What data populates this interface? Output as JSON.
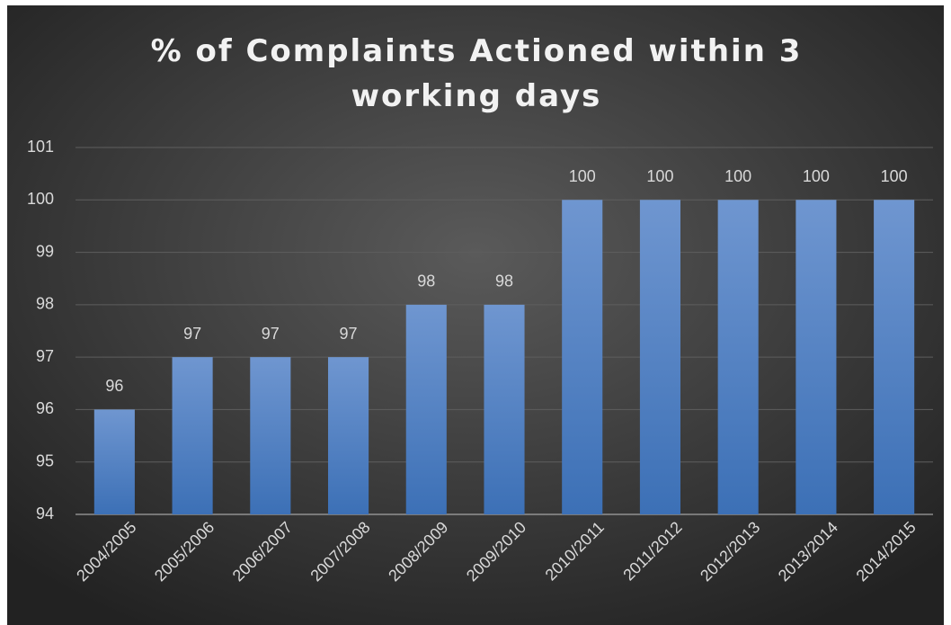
{
  "chart_data": {
    "type": "bar",
    "title": "% of Complaints Actioned within 3 working days",
    "categories": [
      "2004/2005",
      "2005/2006",
      "2006/2007",
      "2007/2008",
      "2008/2009",
      "2009/2010",
      "2010/2011",
      "2011/2012",
      "2012/2013",
      "2013/2014",
      "2014/2015"
    ],
    "values": [
      96,
      97,
      97,
      97,
      98,
      98,
      100,
      100,
      100,
      100,
      100
    ],
    "color": "#4f81c7",
    "ylim": [
      94,
      101
    ],
    "yticks": [
      94,
      95,
      96,
      97,
      98,
      99,
      100,
      101
    ],
    "grid": true
  }
}
